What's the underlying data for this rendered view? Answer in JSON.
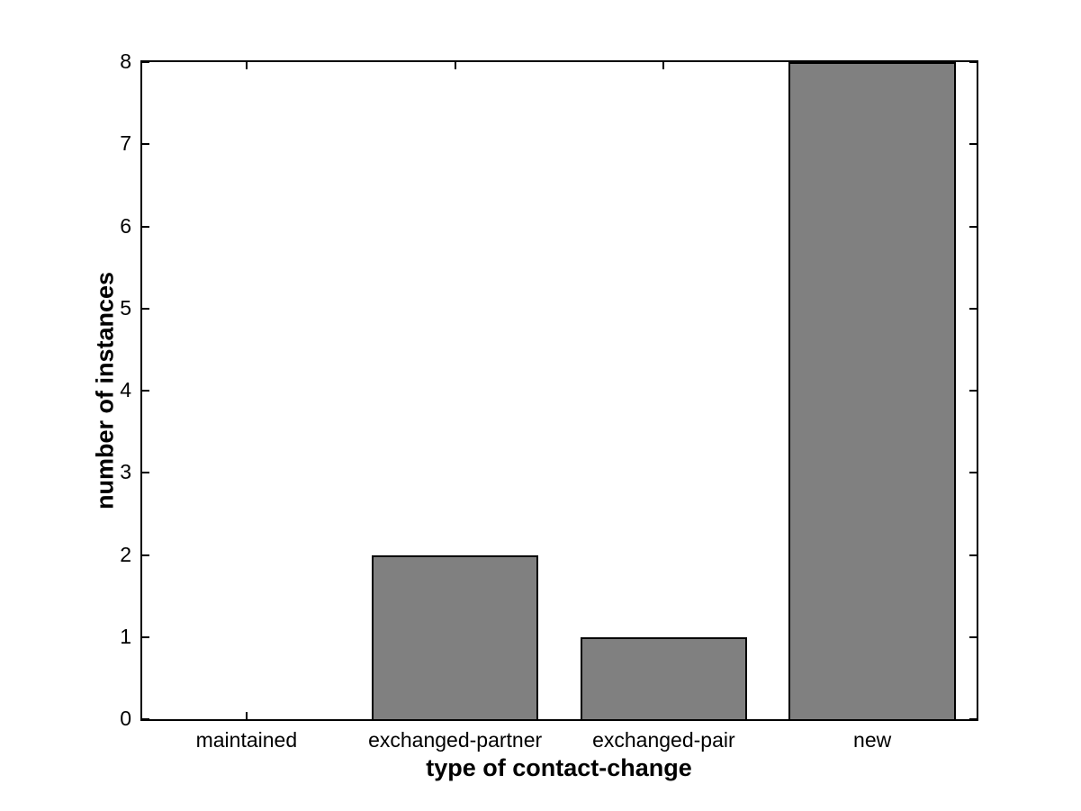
{
  "figure": {
    "background": "#ffffff"
  },
  "chart_data": {
    "type": "bar",
    "title": "",
    "categories": [
      "maintained",
      "exchanged-partner",
      "exchanged-pair",
      "new"
    ],
    "values": [
      0,
      2,
      1,
      8
    ],
    "xlabel": "type of contact-change",
    "ylabel": "number of instances",
    "ylim": [
      0,
      8
    ],
    "yticks": [
      0,
      1,
      2,
      3,
      4,
      5,
      6,
      7,
      8
    ],
    "ytick_labels": [
      "0",
      "1",
      "2",
      "3",
      "4",
      "5",
      "6",
      "7",
      "8"
    ],
    "bar_width_fraction": 0.8,
    "bar_fill_color": "#808080",
    "bar_edge_color": "#000000",
    "axis_color": "#000000",
    "plot_background": "#ffffff",
    "grid": false,
    "legend": null,
    "tick_direction": "in",
    "box": true
  }
}
